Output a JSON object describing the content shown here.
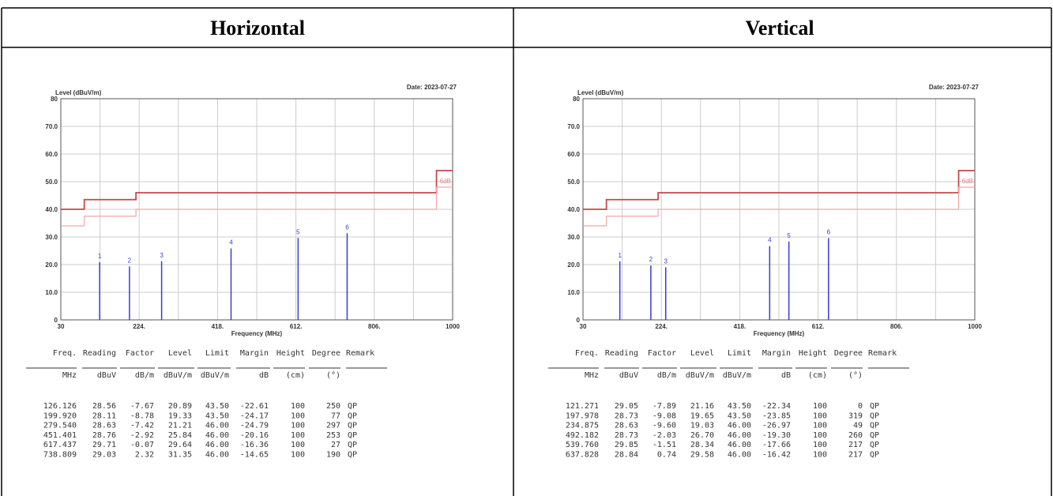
{
  "panels": [
    {
      "title": "Horizontal",
      "chart": {
        "type": "spectrum",
        "y_label": "Level (dBuV/m)",
        "date": "Date: 2023-07-27",
        "x_label": "Frequency (MHz)",
        "xlim": [
          30,
          1000
        ],
        "ylim": [
          0,
          80
        ],
        "xticks": [
          30,
          {
            "value": 224,
            "label": "224."
          },
          {
            "value": 418,
            "label": "418."
          },
          {
            "value": 612,
            "label": "612."
          },
          {
            "value": 806,
            "label": "806."
          },
          1000
        ],
        "yticks": [
          0,
          {
            "value": 10,
            "label": "10.0"
          },
          {
            "value": 20,
            "label": "20.0"
          },
          {
            "value": 30,
            "label": "30.0"
          },
          {
            "value": 40,
            "label": "40.0"
          },
          {
            "value": 50,
            "label": "50.0"
          },
          {
            "value": 60,
            "label": "60.0"
          },
          {
            "value": 70,
            "label": "70.0"
          },
          80
        ],
        "grid": true,
        "series": [
          {
            "color": "#c8484a",
            "x": [
              30,
              88,
              88,
              216,
              216,
              960,
              960,
              1000
            ],
            "values": [
              40,
              40,
              43.5,
              43.5,
              46,
              46,
              54,
              54
            ]
          },
          {
            "color": "#f0a8a8",
            "x": [
              30,
              88,
              88,
              216,
              216,
              960,
              960,
              1000
            ],
            "values": [
              34,
              34,
              37.5,
              37.5,
              40,
              40,
              48,
              48
            ]
          }
        ],
        "annotation": "6dB",
        "peak_color": "#3b3bd6",
        "markers": [
          "1",
          "2",
          "3",
          "4",
          "5",
          "6"
        ]
      },
      "table": {
        "columns": [
          "Freq.",
          "Reading",
          "Factor",
          "Level",
          "Limit",
          "Margin",
          "Height",
          "Degree",
          "Remark"
        ],
        "units": [
          "MHz",
          "dBuV",
          "dB/m",
          "dBuV/m",
          "dBuV/m",
          "dB",
          "(cm)",
          "(°)"
        ],
        "rows": [
          [
            "126.126",
            "28.56",
            "-7.67",
            "20.89",
            "43.50",
            "-22.61",
            "100",
            "250",
            "QP"
          ],
          [
            "199.920",
            "28.11",
            "-8.78",
            "19.33",
            "43.50",
            "-24.17",
            "100",
            "77",
            "QP"
          ],
          [
            "279.540",
            "28.63",
            "-7.42",
            "21.21",
            "46.00",
            "-24.79",
            "100",
            "297",
            "QP"
          ],
          [
            "451.401",
            "28.76",
            "-2.92",
            "25.84",
            "46.00",
            "-20.16",
            "100",
            "253",
            "QP"
          ],
          [
            "617.437",
            "29.71",
            "-0.07",
            "29.64",
            "46.00",
            "-16.36",
            "100",
            "27",
            "QP"
          ],
          [
            "738.809",
            "29.03",
            "2.32",
            "31.35",
            "46.00",
            "-14.65",
            "100",
            "190",
            "QP"
          ]
        ]
      }
    },
    {
      "title": "Vertical",
      "chart": {
        "type": "spectrum",
        "y_label": "Level (dBuV/m)",
        "date": "Date: 2023-07-27",
        "x_label": "Frequency (MHz)",
        "xlim": [
          30,
          1000
        ],
        "ylim": [
          0,
          80
        ],
        "xticks": [
          30,
          {
            "value": 224,
            "label": "224."
          },
          {
            "value": 418,
            "label": "418."
          },
          {
            "value": 612,
            "label": "612."
          },
          {
            "value": 806,
            "label": "806."
          },
          1000
        ],
        "yticks": [
          0,
          {
            "value": 10,
            "label": "10.0"
          },
          {
            "value": 20,
            "label": "20.0"
          },
          {
            "value": 30,
            "label": "30.0"
          },
          {
            "value": 40,
            "label": "40.0"
          },
          {
            "value": 50,
            "label": "50.0"
          },
          {
            "value": 60,
            "label": "60.0"
          },
          {
            "value": 70,
            "label": "70.0"
          },
          80
        ],
        "grid": true,
        "series": [
          {
            "color": "#c8484a",
            "x": [
              30,
              88,
              88,
              216,
              216,
              960,
              960,
              1000
            ],
            "values": [
              40,
              40,
              43.5,
              43.5,
              46,
              46,
              54,
              54
            ]
          },
          {
            "color": "#f0a8a8",
            "x": [
              30,
              88,
              88,
              216,
              216,
              960,
              960,
              1000
            ],
            "values": [
              34,
              34,
              37.5,
              37.5,
              40,
              40,
              48,
              48
            ]
          }
        ],
        "annotation": "6dB",
        "peak_color": "#3b3bd6",
        "markers": [
          "1",
          "2",
          "3",
          "4",
          "5",
          "6"
        ]
      },
      "table": {
        "columns": [
          "Freq.",
          "Reading",
          "Factor",
          "Level",
          "Limit",
          "Margin",
          "Height",
          "Degree",
          "Remark"
        ],
        "units": [
          "MHz",
          "dBuV",
          "dB/m",
          "dBuV/m",
          "dBuV/m",
          "dB",
          "(cm)",
          "(°)"
        ],
        "rows": [
          [
            "121.271",
            "29.05",
            "-7.89",
            "21.16",
            "43.50",
            "-22.34",
            "100",
            "0",
            "QP"
          ],
          [
            "197.978",
            "28.73",
            "-9.08",
            "19.65",
            "43.50",
            "-23.85",
            "100",
            "319",
            "QP"
          ],
          [
            "234.875",
            "28.63",
            "-9.60",
            "19.03",
            "46.00",
            "-26.97",
            "100",
            "49",
            "QP"
          ],
          [
            "492.182",
            "28.73",
            "-2.03",
            "26.70",
            "46.00",
            "-19.30",
            "100",
            "260",
            "QP"
          ],
          [
            "539.760",
            "29.85",
            "-1.51",
            "28.34",
            "46.00",
            "-17.66",
            "100",
            "217",
            "QP"
          ],
          [
            "637.828",
            "28.84",
            "0.74",
            "29.58",
            "46.00",
            "-16.42",
            "100",
            "217",
            "QP"
          ]
        ]
      }
    }
  ]
}
